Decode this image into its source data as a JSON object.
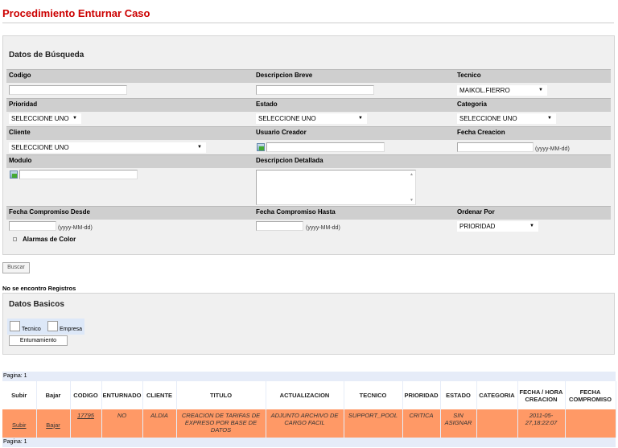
{
  "page": {
    "title": "Procedimiento Enturnar Caso"
  },
  "search": {
    "title": "Datos de Búsqueda",
    "codigo": {
      "label": "Codigo",
      "value": ""
    },
    "descripcion_breve": {
      "label": "Descripcion Breve",
      "value": ""
    },
    "tecnico": {
      "label": "Tecnico",
      "value": "MAIKOL.FIERRO"
    },
    "prioridad": {
      "label": "Prioridad",
      "value": "SELECCIONE UNO"
    },
    "estado": {
      "label": "Estado",
      "value": "SELECCIONE UNO"
    },
    "categoria": {
      "label": "Categoria",
      "value": "SELECCIONE UNO"
    },
    "cliente": {
      "label": "Cliente",
      "value": "SELECCIONE UNO"
    },
    "usuario_creador": {
      "label": "Usuario Creador",
      "value": ""
    },
    "fecha_creacion": {
      "label": "Fecha Creacion",
      "value": "",
      "hint": "(yyyy-MM-dd)"
    },
    "modulo": {
      "label": "Modulo",
      "value": ""
    },
    "descripcion_detallada": {
      "label": "Descripcion Detallada",
      "value": ""
    },
    "fecha_desde": {
      "label": "Fecha Compromiso Desde",
      "value": "",
      "hint": "(yyyy-MM-dd)"
    },
    "fecha_hasta": {
      "label": "Fecha Compromiso Hasta",
      "value": "",
      "hint": "(yyyy-MM-dd)"
    },
    "ordenar": {
      "label": "Ordenar Por",
      "value": "PRIORIDAD"
    },
    "alarmas": "Alarmas de Color",
    "buscar": "Buscar"
  },
  "message": "No se encontro Registros",
  "basicos": {
    "title": "Datos Basicos",
    "radio_tecnico": "Tecnico",
    "radio_empresa": "Empresa",
    "button": "Entumamiento"
  },
  "table": {
    "pagina": "Pagina: 1",
    "headers": [
      "Subir",
      "Bajar",
      "CODIGO",
      "ENTURNADO",
      "CLIENTE",
      "TITULO",
      "ACTUALIZACION",
      "TECNICO",
      "PRIORIDAD",
      "ESTADO",
      "CATEGORIA",
      "FECHA / HORA CREACION",
      "FECHA COMPROMISO"
    ],
    "rows": [
      [
        "Subir",
        "Bajar",
        "17795",
        "NO",
        "ALDIA",
        "CREACION DE TARIFAS DE EXPRESO POR BASE DE DATOS",
        "ADJUNTO ARCHIVO DE CARGO FACIL",
        "SUPPORT_POOL",
        "CRITICA",
        "SIN ASIGNAR",
        "",
        "2011-05-27,18:22:07",
        ""
      ]
    ],
    "row_color": "#ff9966"
  }
}
